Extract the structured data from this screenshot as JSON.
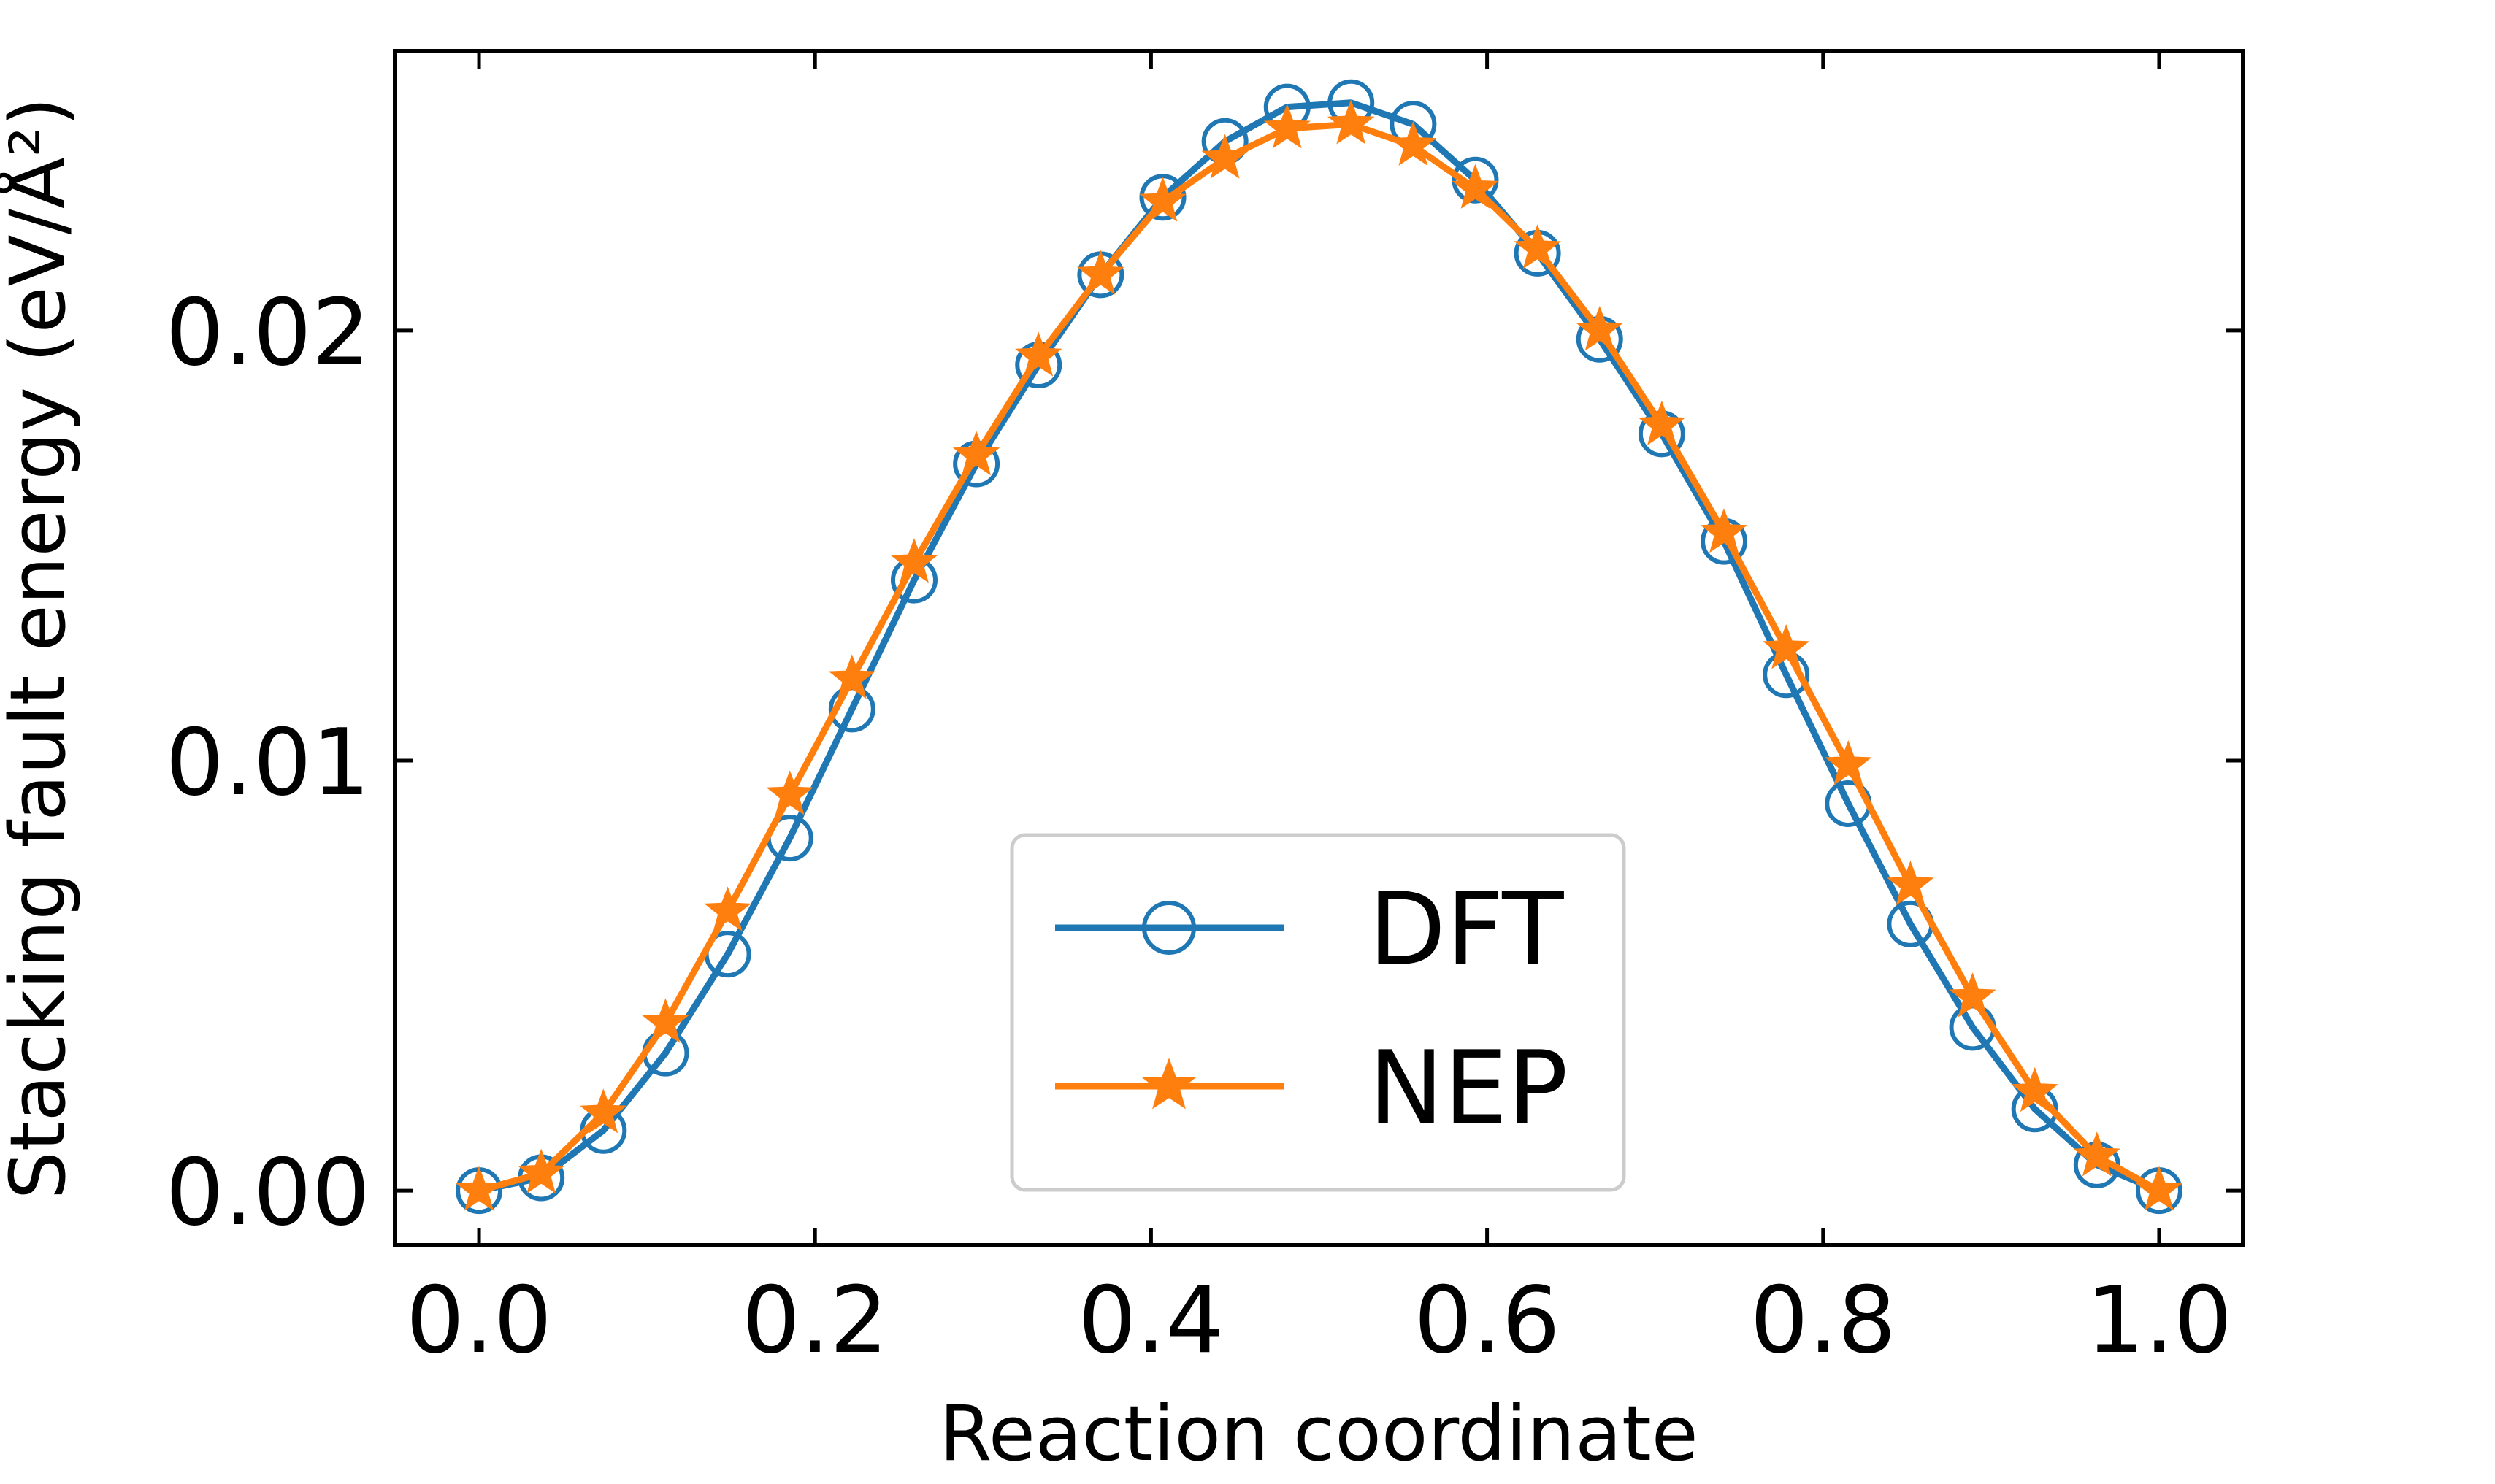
{
  "chart_data": {
    "type": "line",
    "xlabel": "Reaction coordinate",
    "ylabel": "Stacking fault energy (eV/Å²)",
    "xlim": [
      -0.05,
      1.05
    ],
    "ylim": [
      -0.00127,
      0.0265
    ],
    "x_ticks": [
      {
        "value": 0.0,
        "label": "0.0"
      },
      {
        "value": 0.2,
        "label": "0.2"
      },
      {
        "value": 0.4,
        "label": "0.4"
      },
      {
        "value": 0.6,
        "label": "0.6"
      },
      {
        "value": 0.8,
        "label": "0.8"
      },
      {
        "value": 1.0,
        "label": "1.0"
      }
    ],
    "y_ticks": [
      {
        "value": 0.0,
        "label": "0.00"
      },
      {
        "value": 0.01,
        "label": "0.01"
      },
      {
        "value": 0.02,
        "label": "0.02"
      }
    ],
    "grid": false,
    "legend_position": "lower-center",
    "x": [
      0.0,
      0.037,
      0.074,
      0.111,
      0.148,
      0.185,
      0.222,
      0.259,
      0.296,
      0.333,
      0.37,
      0.407,
      0.444,
      0.481,
      0.519,
      0.556,
      0.593,
      0.63,
      0.667,
      0.704,
      0.741,
      0.778,
      0.815,
      0.852,
      0.889,
      0.926,
      0.963,
      1.0
    ],
    "series": [
      {
        "name": "DFT",
        "color": "#1f77b4",
        "marker": "circle",
        "values": [
          0.0,
          0.0003,
          0.0014,
          0.0032,
          0.0055,
          0.0082,
          0.0112,
          0.0142,
          0.0169,
          0.0192,
          0.0213,
          0.0231,
          0.0244,
          0.0252,
          0.0253,
          0.0248,
          0.0235,
          0.0218,
          0.0198,
          0.0176,
          0.0151,
          0.012,
          0.009,
          0.0062,
          0.0038,
          0.0019,
          0.0006,
          0.0
        ]
      },
      {
        "name": "NEP",
        "color": "#ff7f0e",
        "marker": "star",
        "values": [
          0.0,
          0.0004,
          0.0018,
          0.0039,
          0.0065,
          0.0092,
          0.0119,
          0.0146,
          0.0171,
          0.0194,
          0.0213,
          0.023,
          0.024,
          0.0247,
          0.0248,
          0.0243,
          0.0233,
          0.0219,
          0.02,
          0.0178,
          0.0153,
          0.0126,
          0.0099,
          0.0071,
          0.0045,
          0.0023,
          0.0008,
          0.0
        ]
      }
    ]
  }
}
